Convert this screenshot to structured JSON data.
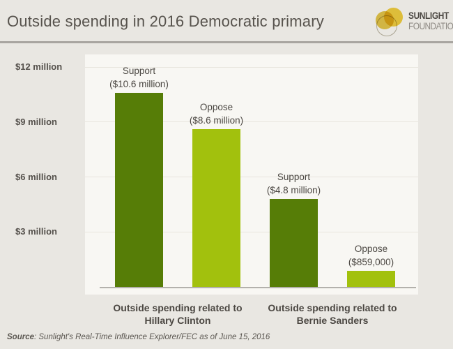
{
  "header": {
    "title": "Outside spending in 2016 Democratic primary",
    "logo": {
      "line1": "SUNLIGHT",
      "line2": "FOUNDATION"
    }
  },
  "chart_data": {
    "type": "bar",
    "title": "Outside spending in 2016 Democratic primary",
    "ylabel": "",
    "xlabel": "",
    "y_axis": {
      "ticks": [
        "$12 million",
        "$9 million",
        "$6 million",
        "$3 million"
      ],
      "tick_values_millions": [
        12,
        9,
        6,
        3
      ],
      "ylim_millions": [
        0,
        12.7
      ]
    },
    "grid": true,
    "legend_position": "none",
    "groups": [
      {
        "line1": "Outside spending related to",
        "line2": "Hillary Clinton"
      },
      {
        "line1": "Outside spending related to",
        "line2": "Bernie Sanders"
      }
    ],
    "bars": [
      {
        "group": "Hillary Clinton",
        "series": "Support",
        "label_line1": "Support",
        "label_line2": "($10.6 million)",
        "value_millions": 10.6,
        "color_role": "support"
      },
      {
        "group": "Hillary Clinton",
        "series": "Oppose",
        "label_line1": "Oppose",
        "label_line2": "($8.6 million)",
        "value_millions": 8.6,
        "color_role": "oppose"
      },
      {
        "group": "Bernie Sanders",
        "series": "Support",
        "label_line1": "Support",
        "label_line2": "($4.8 million)",
        "value_millions": 4.8,
        "color_role": "support"
      },
      {
        "group": "Bernie Sanders",
        "series": "Oppose",
        "label_line1": "Oppose",
        "label_line2": "($859,000)",
        "value_millions": 0.859,
        "color_role": "oppose"
      }
    ]
  },
  "footer": {
    "source_label": "Source",
    "source_rest": ": Sunlight's Real-Time Influence Explorer/FEC as of June 15, 2016"
  },
  "colors": {
    "support": "#567d07",
    "oppose": "#a2c10d",
    "page_bg": "#e9e7e2",
    "plot_bg": "#f8f7f3",
    "text": "#4b4742",
    "divider": "#a8a5a0",
    "baseline": "#b3b1ac",
    "logo_yellow": "#f2d141"
  }
}
